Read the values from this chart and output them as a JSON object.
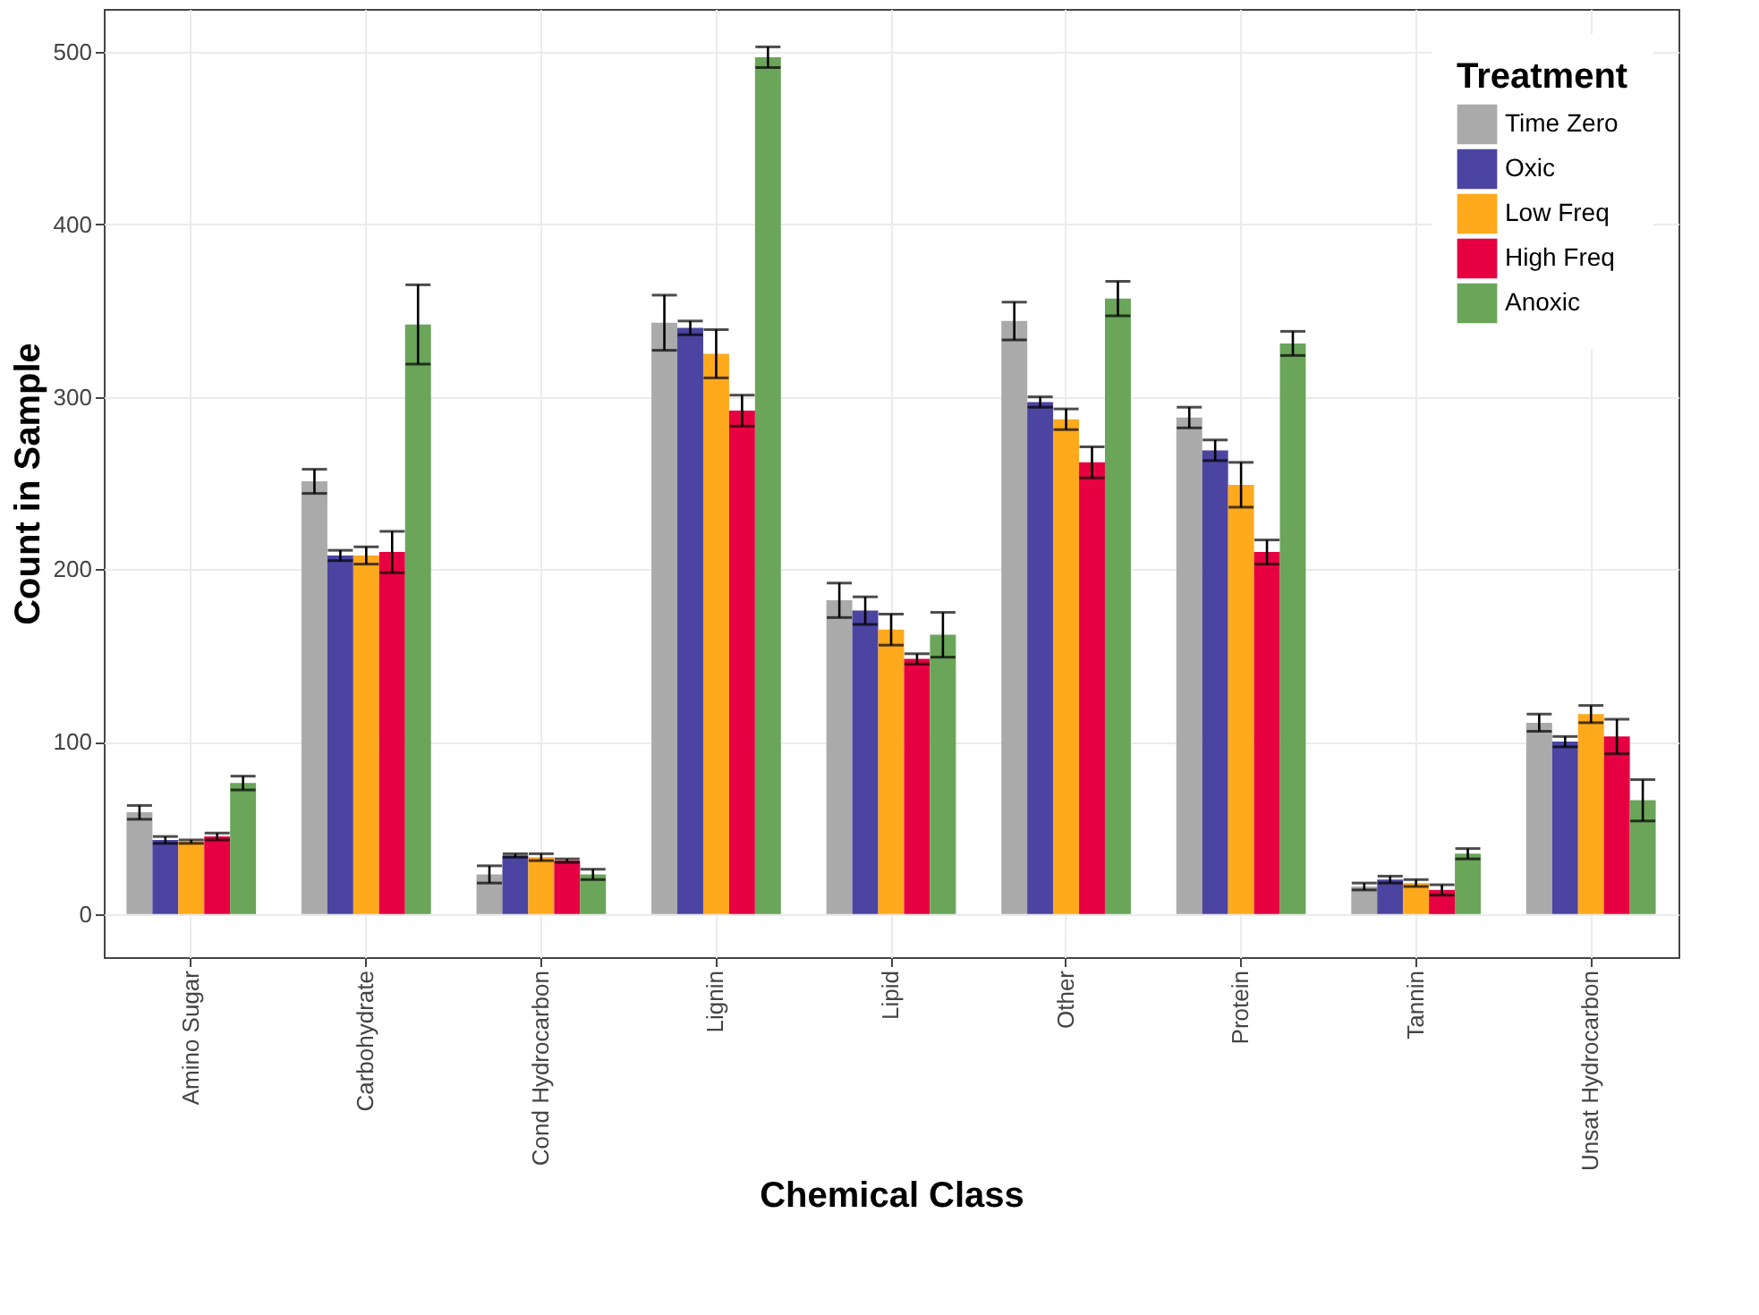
{
  "chart_data": {
    "type": "bar",
    "xlabel": "Chemical Class",
    "ylabel": "Count in Sample",
    "legend_title": "Treatment",
    "categories": [
      "Amino Sugar",
      "Carbohydrate",
      "Cond Hydrocarbon",
      "Lignin",
      "Lipid",
      "Other",
      "Protein",
      "Tannin",
      "Unsat Hydrocarbon"
    ],
    "series": [
      {
        "name": "Time Zero",
        "color": "#aaaaaa",
        "values": [
          59,
          251,
          23,
          343,
          182,
          344,
          288,
          16,
          111
        ],
        "errors": [
          4,
          7,
          5,
          16,
          10,
          11,
          6,
          2,
          5
        ]
      },
      {
        "name": "Oxic",
        "color": "#4b44a0",
        "values": [
          43,
          208,
          34,
          340,
          176,
          297,
          269,
          20,
          100
        ],
        "errors": [
          2,
          3,
          1,
          4,
          8,
          3,
          6,
          2,
          3
        ]
      },
      {
        "name": "Low Freq",
        "color": "#ffa91c",
        "values": [
          42,
          208,
          33,
          325,
          165,
          287,
          249,
          18,
          116
        ],
        "errors": [
          1,
          5,
          2,
          14,
          9,
          6,
          13,
          2,
          5
        ]
      },
      {
        "name": "High Freq",
        "color": "#e60042",
        "values": [
          45,
          210,
          31,
          292,
          148,
          262,
          210,
          14,
          103
        ],
        "errors": [
          2,
          12,
          1,
          9,
          3,
          9,
          7,
          3,
          10
        ]
      },
      {
        "name": "Anoxic",
        "color": "#6aa55a",
        "values": [
          76,
          342,
          23,
          497,
          162,
          357,
          331,
          35,
          66
        ],
        "errors": [
          4,
          23,
          3,
          6,
          13,
          10,
          7,
          3,
          12
        ]
      }
    ],
    "ylim": [
      -25,
      525
    ],
    "yticks": [
      0,
      100,
      200,
      300,
      400,
      500
    ],
    "grid": true,
    "legend": "top right"
  }
}
